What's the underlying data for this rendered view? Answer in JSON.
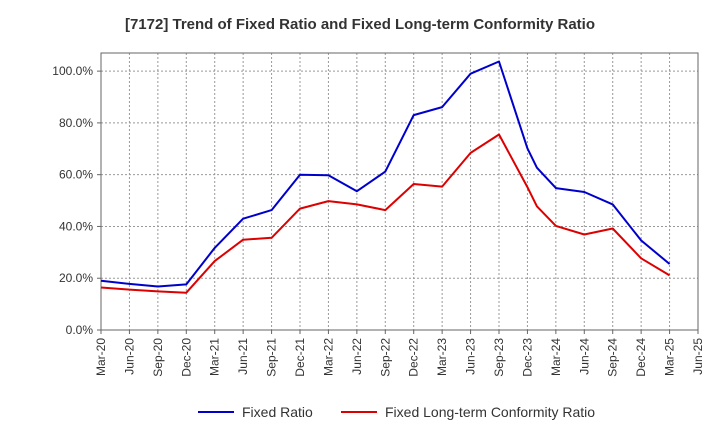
{
  "chart_data": {
    "type": "line",
    "title": "[7172]  Trend of Fixed Ratio and Fixed Long-term Conformity Ratio",
    "xlabel": "",
    "ylabel": "",
    "ylim": [
      0,
      107
    ],
    "y_ticks": [
      "0.0%",
      "20.0%",
      "40.0%",
      "60.0%",
      "80.0%",
      "100.0%"
    ],
    "y_tick_values": [
      0,
      20,
      40,
      60,
      80,
      100
    ],
    "categories": [
      "Mar-20",
      "Jun-20",
      "Sep-20",
      "Dec-20",
      "Mar-21",
      "Jun-21",
      "Sep-21",
      "Dec-21",
      "Mar-22",
      "Jun-22",
      "Sep-22",
      "Dec-22",
      "Mar-23",
      "Jun-23",
      "Sep-23",
      "Dec-23",
      "Mar-24",
      "Jun-24",
      "Sep-24",
      "Dec-24",
      "Mar-25",
      "Jun-25"
    ],
    "grid": true,
    "legend_position": "bottom",
    "series": [
      {
        "name": "Fixed Ratio",
        "color": "#0000cc",
        "x": [
          "Mar-20",
          "Jun-20",
          "Sep-20",
          "Dec-20",
          "Mar-21",
          "Jun-21",
          "Sep-21",
          "Dec-21",
          "Mar-22",
          "Jun-22",
          "Sep-22",
          "Dec-22",
          "Mar-23",
          "Jun-23",
          "Sep-23",
          "Dec-23",
          "Jan-24",
          "Mar-24",
          "Jun-24",
          "Sep-24",
          "Dec-24",
          "Mar-25"
        ],
        "values": [
          19.0,
          17.8,
          16.8,
          17.6,
          31.7,
          43.0,
          46.3,
          60.0,
          59.8,
          53.6,
          61.2,
          83.0,
          86.1,
          99.0,
          103.7,
          70.2,
          62.7,
          54.8,
          53.3,
          48.5,
          34.6,
          25.5
        ]
      },
      {
        "name": "Fixed Long-term Conformity Ratio",
        "color": "#dd0000",
        "x": [
          "Mar-20",
          "Jun-20",
          "Sep-20",
          "Dec-20",
          "Mar-21",
          "Jun-21",
          "Sep-21",
          "Dec-21",
          "Mar-22",
          "Jun-22",
          "Sep-22",
          "Dec-22",
          "Mar-23",
          "Jun-23",
          "Sep-23",
          "Dec-23",
          "Jan-24",
          "Mar-24",
          "Jun-24",
          "Sep-24",
          "Dec-24",
          "Mar-25"
        ],
        "values": [
          16.4,
          15.6,
          14.9,
          14.4,
          26.6,
          34.9,
          35.6,
          46.9,
          49.8,
          48.5,
          46.3,
          56.4,
          55.4,
          68.4,
          75.5,
          55.2,
          47.8,
          40.2,
          36.9,
          39.2,
          27.7,
          21.1
        ]
      }
    ]
  }
}
